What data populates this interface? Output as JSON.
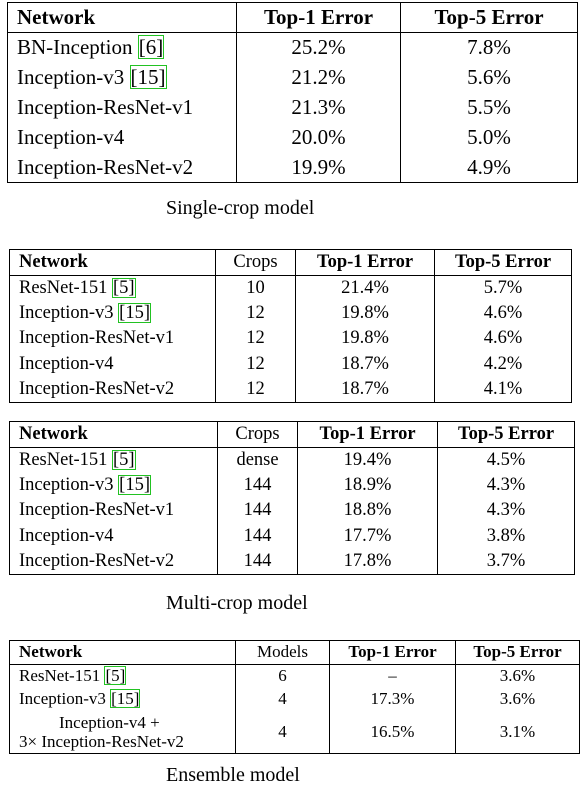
{
  "single_crop": {
    "headers": [
      "Network",
      "Top-1 Error",
      "Top-5 Error"
    ],
    "rows": [
      {
        "name": "BN-Inception",
        "ref": "[6]",
        "top1": "25.2%",
        "top5": "7.8%"
      },
      {
        "name": "Inception-v3",
        "ref": "[15]",
        "top1": "21.2%",
        "top5": "5.6%"
      },
      {
        "name": "Inception-ResNet-v1",
        "ref": "",
        "top1": "21.3%",
        "top5": "5.5%"
      },
      {
        "name": "Inception-v4",
        "ref": "",
        "top1": "20.0%",
        "top5": "5.0%"
      },
      {
        "name": "Inception-ResNet-v2",
        "ref": "",
        "top1": "19.9%",
        "top5": "4.9%"
      }
    ],
    "caption": "Single-crop model"
  },
  "multi_crop_a": {
    "headers": [
      "Network",
      "Crops",
      "Top-1 Error",
      "Top-5 Error"
    ],
    "rows": [
      {
        "name": "ResNet-151",
        "ref": "[5]",
        "crops": "10",
        "top1": "21.4%",
        "top5": "5.7%"
      },
      {
        "name": "Inception-v3",
        "ref": "[15]",
        "crops": "12",
        "top1": "19.8%",
        "top5": "4.6%"
      },
      {
        "name": "Inception-ResNet-v1",
        "ref": "",
        "crops": "12",
        "top1": "19.8%",
        "top5": "4.6%"
      },
      {
        "name": "Inception-v4",
        "ref": "",
        "crops": "12",
        "top1": "18.7%",
        "top5": "4.2%"
      },
      {
        "name": "Inception-ResNet-v2",
        "ref": "",
        "crops": "12",
        "top1": "18.7%",
        "top5": "4.1%"
      }
    ]
  },
  "multi_crop_b": {
    "headers": [
      "Network",
      "Crops",
      "Top-1 Error",
      "Top-5 Error"
    ],
    "rows": [
      {
        "name": "ResNet-151",
        "ref": "[5]",
        "crops": "dense",
        "top1": "19.4%",
        "top5": "4.5%"
      },
      {
        "name": "Inception-v3",
        "ref": "[15]",
        "crops": "144",
        "top1": "18.9%",
        "top5": "4.3%"
      },
      {
        "name": "Inception-ResNet-v1",
        "ref": "",
        "crops": "144",
        "top1": "18.8%",
        "top5": "4.3%"
      },
      {
        "name": "Inception-v4",
        "ref": "",
        "crops": "144",
        "top1": "17.7%",
        "top5": "3.8%"
      },
      {
        "name": "Inception-ResNet-v2",
        "ref": "",
        "crops": "144",
        "top1": "17.8%",
        "top5": "3.7%"
      }
    ],
    "caption": "Multi-crop model"
  },
  "ensemble": {
    "headers": [
      "Network",
      "Models",
      "Top-1 Error",
      "Top-5 Error"
    ],
    "rows": [
      {
        "name": "ResNet-151",
        "ref": "[5]",
        "models": "6",
        "top1": "–",
        "top5": "3.6%"
      },
      {
        "name": "Inception-v3",
        "ref": "[15]",
        "models": "4",
        "top1": "17.3%",
        "top5": "3.6%"
      },
      {
        "name_line1": "Inception-v4 +",
        "name_line2": "3× Inception-ResNet-v2",
        "models": "4",
        "top1": "16.5%",
        "top5": "3.1%"
      }
    ],
    "caption": "Ensemble model"
  }
}
